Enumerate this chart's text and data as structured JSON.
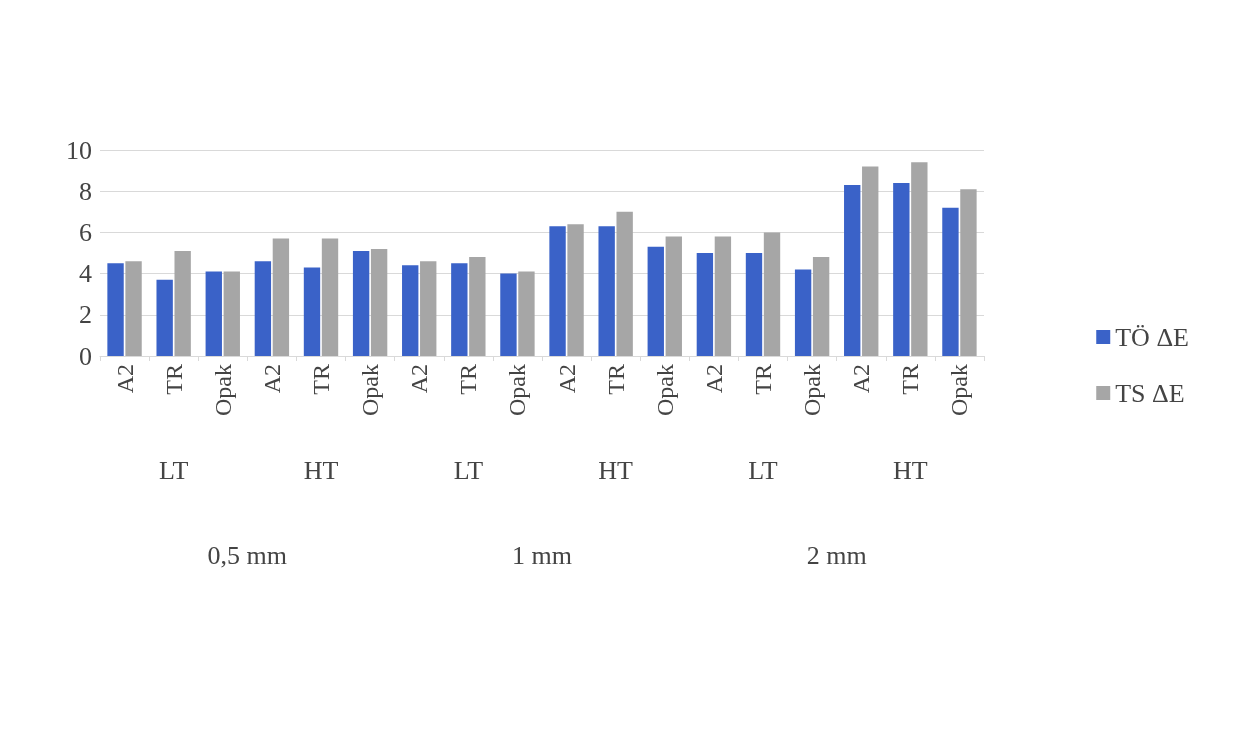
{
  "chart_data": {
    "type": "bar",
    "categories": [
      "A2",
      "TR",
      "Opak",
      "A2",
      "TR",
      "Opak",
      "A2",
      "TR",
      "Opak",
      "A2",
      "TR",
      "Opak",
      "A2",
      "TR",
      "Opak",
      "A2",
      "TR",
      "Opak"
    ],
    "series": [
      {
        "name": "TÖ ΔE",
        "color": "#3a62c8",
        "values": [
          4.5,
          3.7,
          4.1,
          4.6,
          4.3,
          5.1,
          4.4,
          4.5,
          4.0,
          6.3,
          6.3,
          5.3,
          5.0,
          5.0,
          4.2,
          8.3,
          8.4,
          7.2
        ]
      },
      {
        "name": "TS ΔE",
        "color": "#a6a6a6",
        "values": [
          4.6,
          5.1,
          4.1,
          5.7,
          5.7,
          5.2,
          4.6,
          4.8,
          4.1,
          6.4,
          7.0,
          5.8,
          5.8,
          6.0,
          4.8,
          9.2,
          9.4,
          8.1
        ]
      }
    ],
    "annotations": [
      "LT",
      "HT",
      "LT",
      "HT",
      "LT",
      "HT",
      "0,5 mm",
      "1 mm",
      "2 mm"
    ],
    "ylim": [
      0,
      10
    ],
    "yticks": [
      0,
      2,
      4,
      6,
      8,
      10
    ],
    "grid": "y",
    "legend": "right"
  }
}
